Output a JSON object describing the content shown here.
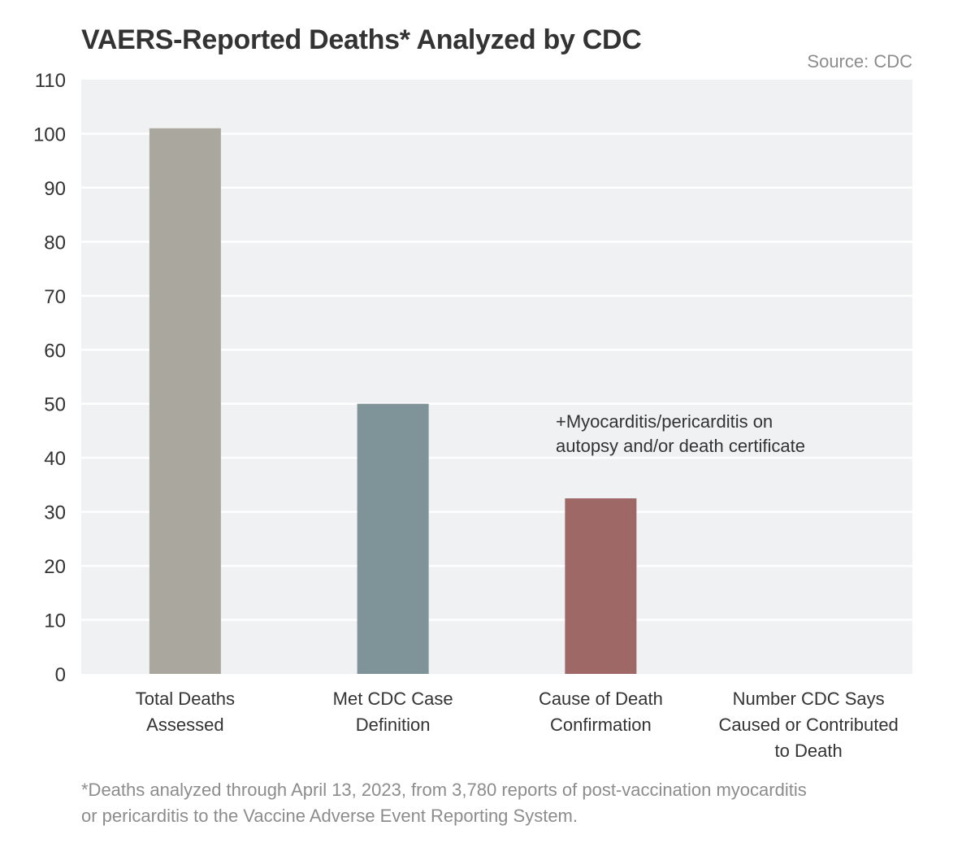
{
  "header": {
    "title": "VAERS-Reported Deaths* Analyzed by CDC",
    "source": "Source: CDC"
  },
  "chart_data": {
    "type": "bar",
    "title": "VAERS-Reported Deaths* Analyzed by CDC",
    "categories": [
      [
        "Total Deaths",
        "Assessed"
      ],
      [
        "Met CDC Case",
        "Definition"
      ],
      [
        "Cause of Death",
        "Confirmation"
      ],
      [
        "Number CDC Says",
        "Caused or Contributed",
        "to Death"
      ]
    ],
    "values": [
      101,
      50,
      32.5,
      0
    ],
    "colors": [
      "#aaa79f",
      "#7e9499",
      "#9e6866",
      "#9e6866"
    ],
    "ylim": [
      0,
      110
    ],
    "yticks": [
      0,
      10,
      20,
      30,
      40,
      50,
      60,
      70,
      80,
      90,
      100,
      110
    ],
    "grid": true,
    "plot_background": "#f0f1f3",
    "annotation": [
      "+Myocarditis/pericarditis on",
      "autopsy and/or death certificate"
    ]
  },
  "footnote": {
    "line1": "*Deaths analyzed through April 13, 2023, from 3,780 reports of post-vaccination myocarditis",
    "line2": "or pericarditis to the Vaccine Adverse Event Reporting System."
  }
}
